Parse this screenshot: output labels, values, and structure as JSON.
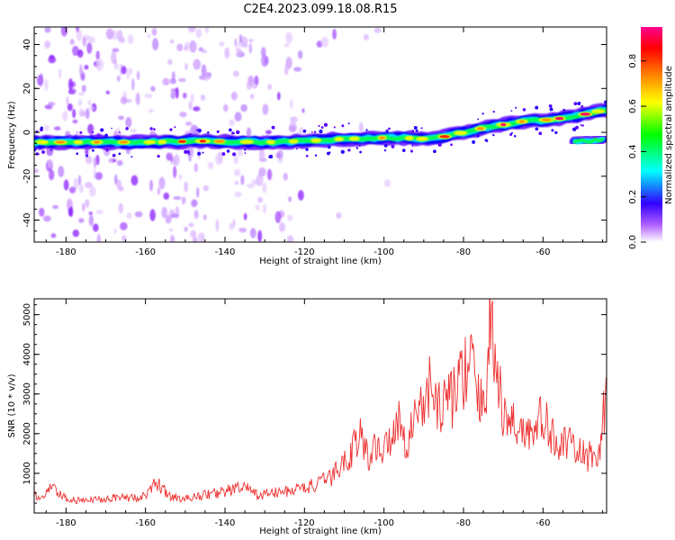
{
  "title": "C2E4.2023.099.18.08.R15",
  "chart_data": [
    {
      "type": "heatmap",
      "xlabel": "Height of straight line (km)",
      "ylabel": "Frequency (Hz)",
      "xlim": [
        -188,
        -44
      ],
      "ylim": [
        -50,
        48
      ],
      "xticks": [
        -180,
        -160,
        -140,
        -120,
        -100,
        -80,
        -60
      ],
      "yticks": [
        -40,
        -20,
        0,
        20,
        40
      ],
      "ridge": {
        "x": [
          -188,
          -175,
          -160,
          -145,
          -130,
          -120,
          -110,
          -100,
          -95,
          -90,
          -85,
          -80,
          -75,
          -70,
          -65,
          -60,
          -55,
          -50,
          -45
        ],
        "y": [
          -4.5,
          -4.5,
          -4.5,
          -4,
          -4.5,
          -4,
          -3,
          -2.5,
          -2.5,
          -3,
          -2,
          0,
          2,
          3.5,
          5,
          5.5,
          6.5,
          8,
          10
        ]
      },
      "secondary_ridge": {
        "x": [
          -52,
          -50,
          -48,
          -45
        ],
        "y": [
          -4,
          -4,
          -4,
          -3
        ]
      },
      "colorbar": {
        "label": "Normalized spectral amplitude",
        "range": [
          0.0,
          0.95
        ],
        "ticks": [
          "0.0",
          "0.2",
          "0.4",
          "0.6",
          "0.8"
        ],
        "colormap": [
          "#ffffff",
          "#7f00ff",
          "#0000ff",
          "#00ffff",
          "#00ff00",
          "#ffff00",
          "#ff8000",
          "#ff0000",
          "#ff0080"
        ]
      }
    },
    {
      "type": "line",
      "xlabel": "Height of straight line (km)",
      "ylabel": "SNR (10 * v/v)",
      "xlim": [
        -188,
        -44
      ],
      "ylim": [
        0,
        5400
      ],
      "xticks": [
        -180,
        -160,
        -140,
        -120,
        -100,
        -80,
        -60
      ],
      "yticks": [
        1000,
        2000,
        3000,
        4000,
        5000
      ],
      "color": "#ee3333",
      "series": [
        {
          "x": [
            -188,
            -186,
            -184,
            -180,
            -176,
            -172,
            -168,
            -164,
            -160,
            -157,
            -154,
            -150,
            -146,
            -142,
            -138,
            -135,
            -132,
            -128,
            -124,
            -120,
            -117,
            -114,
            -111,
            -108,
            -106,
            -104,
            -102,
            -100,
            -97,
            -94,
            -92,
            -90,
            -88,
            -86,
            -84,
            -82,
            -80,
            -78,
            -76,
            -74,
            -73,
            -72,
            -70,
            -68,
            -65,
            -62,
            -60,
            -58,
            -55,
            -52,
            -49,
            -46,
            -44
          ],
          "y": [
            450,
            350,
            650,
            350,
            300,
            350,
            400,
            380,
            420,
            780,
            420,
            350,
            450,
            500,
            600,
            650,
            450,
            500,
            550,
            650,
            700,
            850,
            1150,
            1600,
            2000,
            1350,
            1800,
            1500,
            2400,
            1800,
            2500,
            2800,
            3200,
            2600,
            3000,
            2900,
            3600,
            3800,
            2600,
            3500,
            5400,
            3800,
            2400,
            2300,
            2100,
            2000,
            2500,
            1900,
            1800,
            1600,
            1400,
            1500,
            3000
          ]
        }
      ]
    }
  ]
}
